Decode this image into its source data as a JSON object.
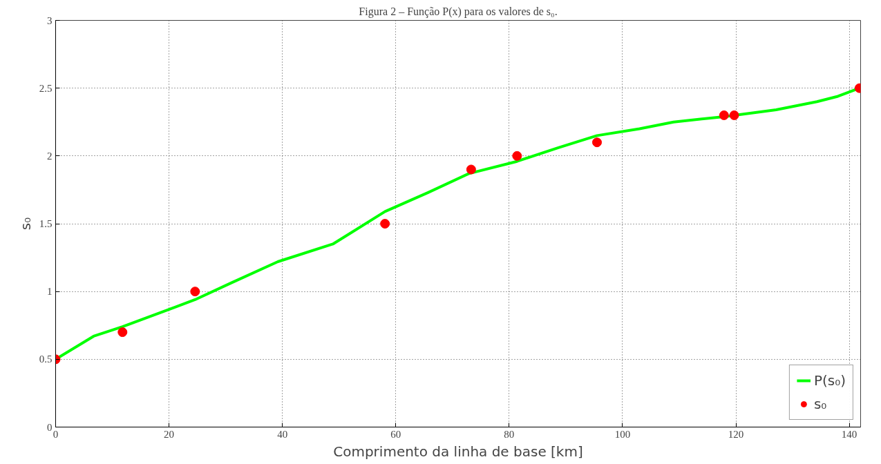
{
  "chart_data": {
    "type": "line",
    "title": "Figura 2 – Função P(x) para os valores de s₀.",
    "xlabel": "Comprimento da linha de base [km]",
    "ylabel": "s₀",
    "xlim": [
      0,
      142
    ],
    "ylim": [
      0,
      3
    ],
    "xticks": [
      0,
      20,
      40,
      60,
      80,
      100,
      120,
      140
    ],
    "yticks": [
      0,
      0.5,
      1,
      1.5,
      2,
      2.5,
      3
    ],
    "grid": true,
    "legend": "bottom right",
    "series": [
      {
        "name": "P(s₀)",
        "color": "#00ff00",
        "marker": "none",
        "line_style": "solid",
        "x": [
          0,
          6.7,
          11.8,
          24.6,
          30.8,
          39.2,
          48.9,
          58.1,
          65.7,
          72.9,
          81.4,
          88.6,
          95.5,
          103,
          109,
          117.9,
          127.1,
          134.3,
          138,
          141.8
        ],
        "values": [
          0.5,
          0.67,
          0.74,
          0.94,
          1.06,
          1.22,
          1.35,
          1.59,
          1.73,
          1.87,
          1.96,
          2.06,
          2.15,
          2.2,
          2.25,
          2.29,
          2.34,
          2.4,
          2.44,
          2.5
        ]
      },
      {
        "name": "s₀",
        "type": "scatter",
        "color": "#ff0000",
        "marker": "circle",
        "x": [
          0,
          11.8,
          24.6,
          58.1,
          73.3,
          81.4,
          95.5,
          117.9,
          119.7,
          141.8
        ],
        "values": [
          0.5,
          0.7,
          1.0,
          1.5,
          1.9,
          2.0,
          2.1,
          2.3,
          2.3,
          2.5
        ]
      }
    ]
  }
}
